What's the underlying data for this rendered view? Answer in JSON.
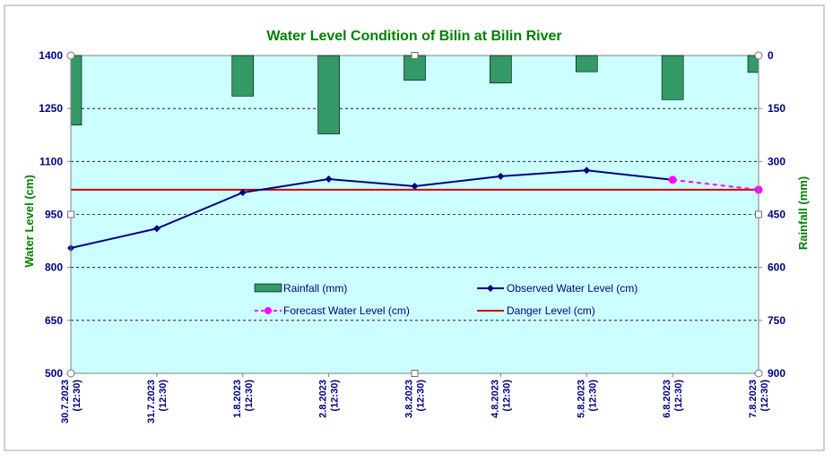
{
  "chart_data": {
    "type": "bar+line",
    "title": "Water Level Condition of Bilin at Bilin River",
    "ylabel": "Water Level (cm)",
    "y2label": "Rainfall (mm)",
    "ylim": [
      500,
      1400
    ],
    "y2lim": [
      0,
      900
    ],
    "y2_inverted": true,
    "yticks": [
      "1400",
      "1250",
      "1100",
      "950",
      "800",
      "650",
      "500"
    ],
    "y2ticks": [
      "0",
      "150",
      "300",
      "450",
      "600",
      "750",
      "900"
    ],
    "categories": [
      {
        "date": "30.7.2023",
        "time": "(12:30)"
      },
      {
        "date": "31.7.2023",
        "time": "(12:30)"
      },
      {
        "date": "1.8.2023",
        "time": "(12:30)"
      },
      {
        "date": "2.8.2023",
        "time": "(12:30)"
      },
      {
        "date": "3.8.2023",
        "time": "(12:30)"
      },
      {
        "date": "4.8.2023",
        "time": "(12:30)"
      },
      {
        "date": "5.8.2023",
        "time": "(12:30)"
      },
      {
        "date": "6.8.2023",
        "time": "(12:30)"
      },
      {
        "date": "7.8.2023",
        "time": "(12:30)"
      }
    ],
    "series": [
      {
        "name": "Rainfall (mm)",
        "type": "bar",
        "axis": "right",
        "color": "#339966",
        "values": [
          197,
          null,
          115,
          222,
          70,
          78,
          46,
          125,
          48
        ]
      },
      {
        "name": "Observed Water Level (cm)",
        "type": "line",
        "axis": "left",
        "color": "#000080",
        "values": [
          855,
          910,
          1012,
          1050,
          1030,
          1058,
          1075,
          1048,
          null
        ]
      },
      {
        "name": "Forecast Water Level (cm)",
        "type": "line",
        "axis": "left",
        "color": "#ff00ff",
        "dashed": true,
        "values": [
          null,
          null,
          null,
          null,
          null,
          null,
          null,
          1048,
          1020
        ]
      },
      {
        "name": "Danger Level (cm)",
        "type": "hline",
        "axis": "left",
        "color": "#cc0000",
        "values": [
          1020,
          1020,
          1020,
          1020,
          1020,
          1020,
          1020,
          1020,
          1020
        ]
      }
    ],
    "legend_placement": "inside-middle",
    "grid": "horizontal-dashed",
    "plot_background": "#ccffff"
  }
}
